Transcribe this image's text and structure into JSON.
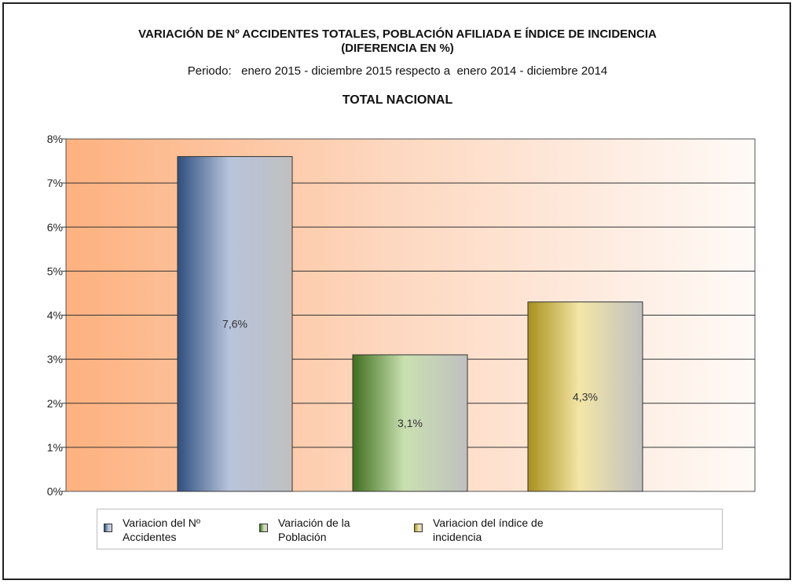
{
  "header": {
    "title": "VARIACIÓN DE Nº ACCIDENTES TOTALES, POBLACIÓN AFILIADA E ÍNDICE DE INCIDENCIA",
    "title_line2": "(DIFERENCIA EN %)",
    "period": "Periodo:   enero 2015 - diciembre 2015 respecto a  enero 2014 - diciembre 2014",
    "subtitle": "TOTAL NACIONAL"
  },
  "chart_data": {
    "type": "bar",
    "title": "VARIACIÓN DE Nº ACCIDENTES TOTALES, POBLACIÓN AFILIADA E ÍNDICE DE INCIDENCIA (DIFERENCIA EN %)",
    "subtitle": "TOTAL NACIONAL",
    "xlabel": "",
    "ylabel": "",
    "ylim": [
      0,
      8
    ],
    "yticks": [
      "0%",
      "1%",
      "2%",
      "3%",
      "4%",
      "5%",
      "6%",
      "7%",
      "8%"
    ],
    "grid": true,
    "legend_position": "bottom",
    "series": [
      {
        "name": "Variacion del Nº Accidentes",
        "value": 7.6,
        "label": "7,6%",
        "color": "#2f4f7f",
        "color_light": "#b7c4dc"
      },
      {
        "name": "Variación de la Población",
        "value": 3.1,
        "label": "3,1%",
        "color": "#3f6f1f",
        "color_light": "#c9e0b0"
      },
      {
        "name": "Variacion del índice de incidencia",
        "value": 4.3,
        "label": "4,3%",
        "color": "#a8901c",
        "color_light": "#f3e6a6"
      }
    ]
  },
  "legend": {
    "items": [
      {
        "line1": "Variacion del Nº",
        "line2": "Accidentes"
      },
      {
        "line1": "Variación de la",
        "line2": "Población"
      },
      {
        "line1": "Variacion del índice de",
        "line2": "incidencia"
      }
    ]
  }
}
